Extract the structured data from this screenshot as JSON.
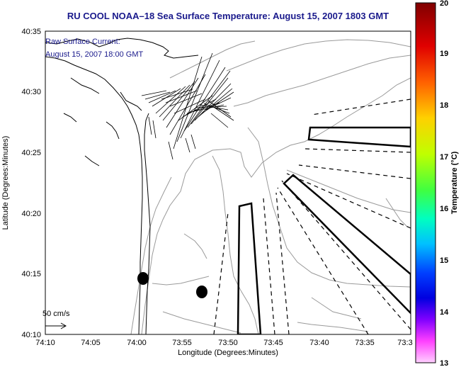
{
  "title": "RU COOL  NOAA–18  Sea Surface Temperature:  August 15, 2007 1803 GMT",
  "annotation": {
    "line1": "Raw Surface Current:",
    "line2": "August 15, 2007 18:00 GMT"
  },
  "scale_label": "50 cm/s",
  "axes": {
    "xlabel": "Longitude (Degrees:Minutes)",
    "ylabel": "Latitude (Degrees:Minutes)",
    "xticks": [
      "74:10",
      "74:05",
      "74:00",
      "73:55",
      "73:50",
      "73:45",
      "73:40",
      "73:35",
      "73:3"
    ],
    "yticks": [
      "40:35",
      "40:30",
      "40:25",
      "40:20",
      "40:15",
      "40:10"
    ]
  },
  "colorbar": {
    "label": "Temperature (°C)",
    "ticks": [
      "20",
      "19",
      "18",
      "17",
      "16",
      "15",
      "14",
      "13"
    ],
    "colors": [
      "#8b0000",
      "#ff0000",
      "#ff8c00",
      "#ffd700",
      "#b4ff00",
      "#00ff80",
      "#00ffff",
      "#0080ff",
      "#0000ff",
      "#8000ff",
      "#ff00ff",
      "#ffc0ff"
    ]
  }
}
